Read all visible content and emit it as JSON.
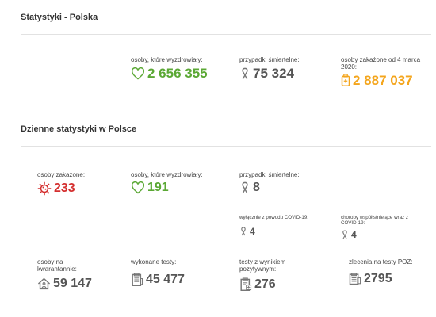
{
  "colors": {
    "green": "#5ba835",
    "red": "#d42f2f",
    "orange": "#f4a51c",
    "gray": "#555555"
  },
  "section_poland": {
    "title": "Statystyki - Polska",
    "recovered": {
      "label": "osoby, które wyzdrowiały:",
      "value": "2 656 355",
      "icon": "heart-icon"
    },
    "deaths": {
      "label": "przypadki śmiertelne:",
      "value": "75 324",
      "icon": "ribbon-icon"
    },
    "infected": {
      "label": "osoby zakażone od 4 marca 2020:",
      "value": "2 887 037",
      "icon": "document-plus-icon"
    }
  },
  "section_daily": {
    "title": "Dzienne statystyki w Polsce",
    "infected": {
      "label": "osoby zakażone:",
      "value": "233",
      "icon": "virus-icon"
    },
    "recovered": {
      "label": "osoby, które wyzdrowiały:",
      "value": "191",
      "icon": "heart-icon"
    },
    "deaths": {
      "label": "przypadki śmiertelne:",
      "value": "8",
      "icon": "ribbon-icon"
    },
    "deaths_covid_only": {
      "label": "wyłącznie z powodu COVID-19:",
      "value": "4",
      "icon": "ribbon-icon"
    },
    "deaths_comorbid": {
      "label": "choroby współistniejące wraz z COVID-19:",
      "value": "4",
      "icon": "ribbon-icon"
    },
    "quarantine": {
      "label": "osoby na kwarantannie:",
      "value": "59 147",
      "icon": "home-person-icon"
    },
    "tests": {
      "label": "wykonane testy:",
      "value": "45 477",
      "icon": "clipboard-icon"
    },
    "positive_tests": {
      "label": "testy z wynikiem pozytywnym:",
      "value": "276",
      "icon": "clipboard-positive-icon"
    },
    "poz_orders": {
      "label": "zlecenia na testy POZ:",
      "value": "2795",
      "icon": "clipboard-order-icon"
    }
  }
}
